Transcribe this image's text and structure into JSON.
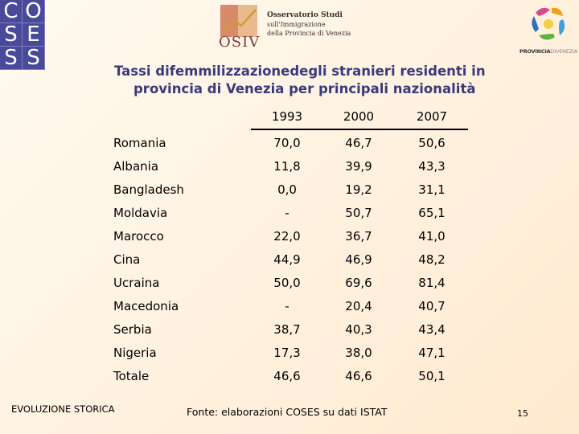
{
  "logos": {
    "coses_letters": [
      "C",
      "O",
      "S",
      "E",
      "S",
      "S"
    ],
    "osiv_word": "OSIV",
    "osiv_lines": [
      "Osservatorio Studi",
      "sull'Immigrazione",
      "della Provincia di Venezia"
    ],
    "provincia_bold": "PROVINCIA",
    "provincia_light": "DIVENEZIA"
  },
  "title": {
    "line1": "Tassi difemmilizzazionedegli stranieri residenti in",
    "line2": "provincia di Venezia per principali nazionalità"
  },
  "table": {
    "years": [
      "1993",
      "2000",
      "2007"
    ],
    "rows": [
      {
        "label": "Romania",
        "v": [
          "70,0",
          "46,7",
          "50,6"
        ]
      },
      {
        "label": "Albania",
        "v": [
          "11,8",
          "39,9",
          "43,3"
        ]
      },
      {
        "label": "Bangladesh",
        "v": [
          "0,0",
          "19,2",
          "31,1"
        ]
      },
      {
        "label": "Moldavia",
        "v": [
          "-",
          "50,7",
          "65,1"
        ]
      },
      {
        "label": "Marocco",
        "v": [
          "22,0",
          "36,7",
          "41,0"
        ]
      },
      {
        "label": "Cina",
        "v": [
          "44,9",
          "46,9",
          "48,2"
        ]
      },
      {
        "label": "Ucraina",
        "v": [
          "50,0",
          "69,6",
          "81,4"
        ]
      },
      {
        "label": "Macedonia",
        "v": [
          "-",
          "20,4",
          "40,7"
        ]
      },
      {
        "label": "Serbia",
        "v": [
          "38,7",
          "40,3",
          "43,4"
        ]
      },
      {
        "label": "Nigeria",
        "v": [
          "17,3",
          "38,0",
          "47,1"
        ]
      },
      {
        "label": "Totale",
        "v": [
          "46,6",
          "46,6",
          "50,1"
        ]
      }
    ]
  },
  "footer": {
    "section": "EVOLUZIONE STORICA",
    "source": "Fonte: elaborazioni COSES su dati ISTAT",
    "page": "15"
  },
  "colors": {
    "title": "#3a3a7c",
    "coses_bg": "#4a4a9a"
  }
}
